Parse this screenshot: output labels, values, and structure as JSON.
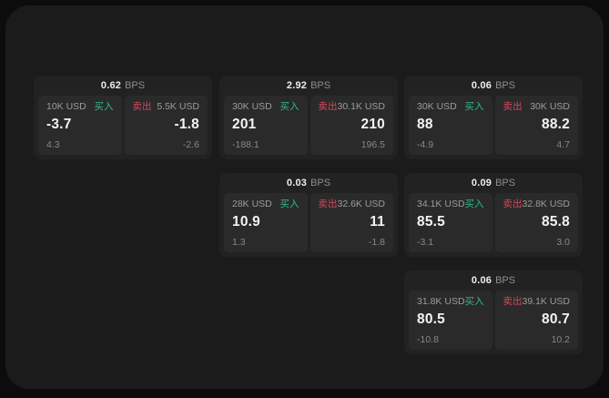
{
  "labels": {
    "buy": "买入",
    "sell": "卖出",
    "bps_unit": "BPS"
  },
  "colors": {
    "buy_green": "#2ebd85",
    "sell_red": "#d6455d",
    "panel_bg": "#1b1b1b",
    "card_bg": "#222222",
    "pane_bg": "#2a2a2a"
  },
  "columns": [
    {
      "cards": [
        {
          "bps": "0.62",
          "buy": {
            "amount": "10K USD",
            "value": "-3.7",
            "sub": "4.3"
          },
          "sell": {
            "amount": "5.5K USD",
            "value": "-1.8",
            "sub": "-2.6"
          }
        }
      ]
    },
    {
      "cards": [
        {
          "bps": "2.92",
          "buy": {
            "amount": "30K USD",
            "value": "201",
            "sub": "-188.1"
          },
          "sell": {
            "amount": "30.1K USD",
            "value": "210",
            "sub": "196.5"
          }
        },
        {
          "bps": "0.03",
          "buy": {
            "amount": "28K USD",
            "value": "10.9",
            "sub": "1.3"
          },
          "sell": {
            "amount": "32.6K USD",
            "value": "11",
            "sub": "-1.8"
          }
        }
      ]
    },
    {
      "cards": [
        {
          "bps": "0.06",
          "buy": {
            "amount": "30K USD",
            "value": "88",
            "sub": "-4.9"
          },
          "sell": {
            "amount": "30K USD",
            "value": "88.2",
            "sub": "4.7"
          }
        },
        {
          "bps": "0.09",
          "buy": {
            "amount": "34.1K USD",
            "value": "85.5",
            "sub": "-3.1"
          },
          "sell": {
            "amount": "32.8K USD",
            "value": "85.8",
            "sub": "3.0"
          }
        },
        {
          "bps": "0.06",
          "buy": {
            "amount": "31.8K USD",
            "value": "80.5",
            "sub": "-10.8"
          },
          "sell": {
            "amount": "39.1K USD",
            "value": "80.7",
            "sub": "10.2"
          }
        }
      ]
    }
  ]
}
